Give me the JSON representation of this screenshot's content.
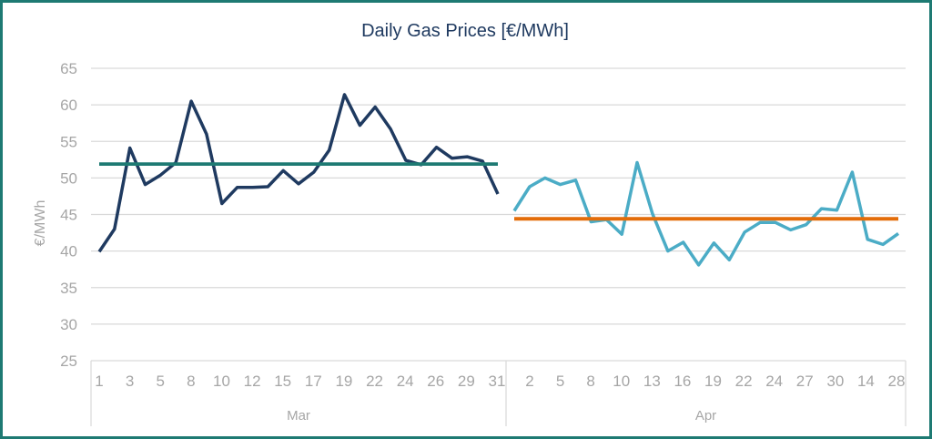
{
  "chart_data": {
    "type": "line",
    "title": "Daily Gas Prices [€/MWh]",
    "xlabel": "",
    "ylabel": "€/MWh",
    "ylim": [
      25,
      65
    ],
    "yticks": [
      "25",
      "30",
      "35",
      "40",
      "45",
      "50",
      "55",
      "60",
      "65"
    ],
    "grid": "horizontal",
    "months": [
      "Mar",
      "Apr"
    ],
    "mar_ticks": [
      "1",
      "3",
      "5",
      "8",
      "10",
      "12",
      "15",
      "17",
      "19",
      "22",
      "24",
      "26",
      "29",
      "31"
    ],
    "apr_ticks": [
      "2",
      "5",
      "8",
      "10",
      "13",
      "16",
      "19",
      "22",
      "24",
      "27",
      "30",
      "14",
      "28"
    ],
    "series": [
      {
        "color": "#1f3a60",
        "values": [
          39.9,
          43.0,
          54.1,
          49.1,
          50.4,
          52.1,
          60.5,
          56.0,
          46.5,
          48.7,
          48.7,
          48.8,
          51.0,
          49.2,
          50.8,
          53.8,
          61.4,
          57.2,
          59.7,
          56.7,
          52.4,
          51.8,
          54.2,
          52.7,
          52.9,
          52.3,
          47.8
        ]
      },
      {
        "color": "#1e7a73",
        "values": [
          51.9,
          51.9,
          51.9,
          51.9,
          51.9,
          51.9,
          51.9,
          51.9,
          51.9,
          51.9,
          51.9,
          51.9,
          51.9,
          51.9,
          51.9,
          51.9,
          51.9,
          51.9,
          51.9,
          51.9,
          51.9,
          51.9,
          51.9,
          51.9,
          51.9,
          51.9,
          51.9
        ]
      },
      {
        "color": "#4bacc6",
        "values": [
          45.5,
          48.8,
          50.0,
          49.1,
          49.7,
          44.0,
          44.3,
          42.3,
          52.1,
          45.1,
          40.0,
          41.2,
          38.1,
          41.1,
          38.8,
          42.6,
          43.9,
          43.9,
          42.9,
          43.6,
          45.8,
          45.6,
          50.8,
          41.6,
          40.9,
          42.4
        ]
      },
      {
        "color": "#e36c09",
        "values": [
          44.4,
          44.4,
          44.4,
          44.4,
          44.4,
          44.4,
          44.4,
          44.4,
          44.4,
          44.4,
          44.4,
          44.4,
          44.4,
          44.4,
          44.4,
          44.4,
          44.4,
          44.4,
          44.4,
          44.4,
          44.4,
          44.4,
          44.4,
          44.4,
          44.4,
          44.4
        ]
      }
    ]
  }
}
